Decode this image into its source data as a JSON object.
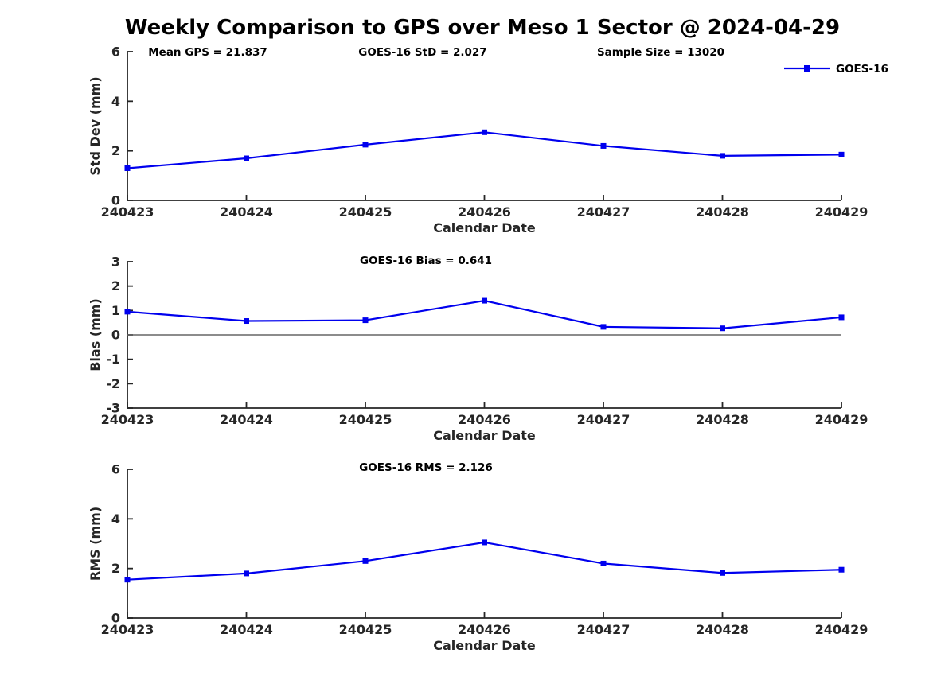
{
  "title": "Weekly Comparison to GPS over Meso 1 Sector @ 2024-04-29",
  "colors": {
    "series": "#0000EE",
    "axis": "#262626",
    "text": "#000000",
    "zero_line": "#666666"
  },
  "chart_data": [
    {
      "type": "line",
      "panel": "std-dev",
      "annotations": [
        "Mean GPS = 21.837",
        "GOES-16 StD = 2.027",
        "Sample Size = 13020"
      ],
      "categories": [
        "240423",
        "240424",
        "240425",
        "240426",
        "240427",
        "240428",
        "240429"
      ],
      "series": [
        {
          "name": "GOES-16",
          "marker": "square",
          "values": [
            1.3,
            1.7,
            2.25,
            2.75,
            2.2,
            1.8,
            1.85
          ]
        }
      ],
      "xlabel": "Calendar Date",
      "ylabel": "Std Dev (mm)",
      "ylim": [
        0,
        6
      ],
      "yticks": [
        0,
        2,
        4,
        6
      ],
      "grid": false,
      "legend_position": "top-right",
      "zero_line": false
    },
    {
      "type": "line",
      "panel": "bias",
      "annotations": [
        "GOES-16 Bias  = 0.641"
      ],
      "categories": [
        "240423",
        "240424",
        "240425",
        "240426",
        "240427",
        "240428",
        "240429"
      ],
      "series": [
        {
          "name": "GOES-16",
          "marker": "square",
          "values": [
            0.95,
            0.57,
            0.6,
            1.4,
            0.33,
            0.27,
            0.72
          ]
        }
      ],
      "xlabel": "Calendar Date",
      "ylabel": "Bias (mm)",
      "ylim": [
        -3,
        3
      ],
      "yticks": [
        3,
        2,
        1,
        0,
        -1,
        -2,
        -3
      ],
      "grid": false,
      "legend_position": "none",
      "zero_line": true
    },
    {
      "type": "line",
      "panel": "rms",
      "annotations": [
        "GOES-16 RMS = 2.126"
      ],
      "categories": [
        "240423",
        "240424",
        "240425",
        "240426",
        "240427",
        "240428",
        "240429"
      ],
      "series": [
        {
          "name": "GOES-16",
          "marker": "square",
          "values": [
            1.55,
            1.8,
            2.3,
            3.05,
            2.2,
            1.82,
            1.95
          ]
        }
      ],
      "xlabel": "Calendar Date",
      "ylabel": "RMS (mm)",
      "ylim": [
        0,
        6
      ],
      "yticks": [
        0,
        2,
        4,
        6
      ],
      "grid": false,
      "legend_position": "none",
      "zero_line": false
    }
  ]
}
